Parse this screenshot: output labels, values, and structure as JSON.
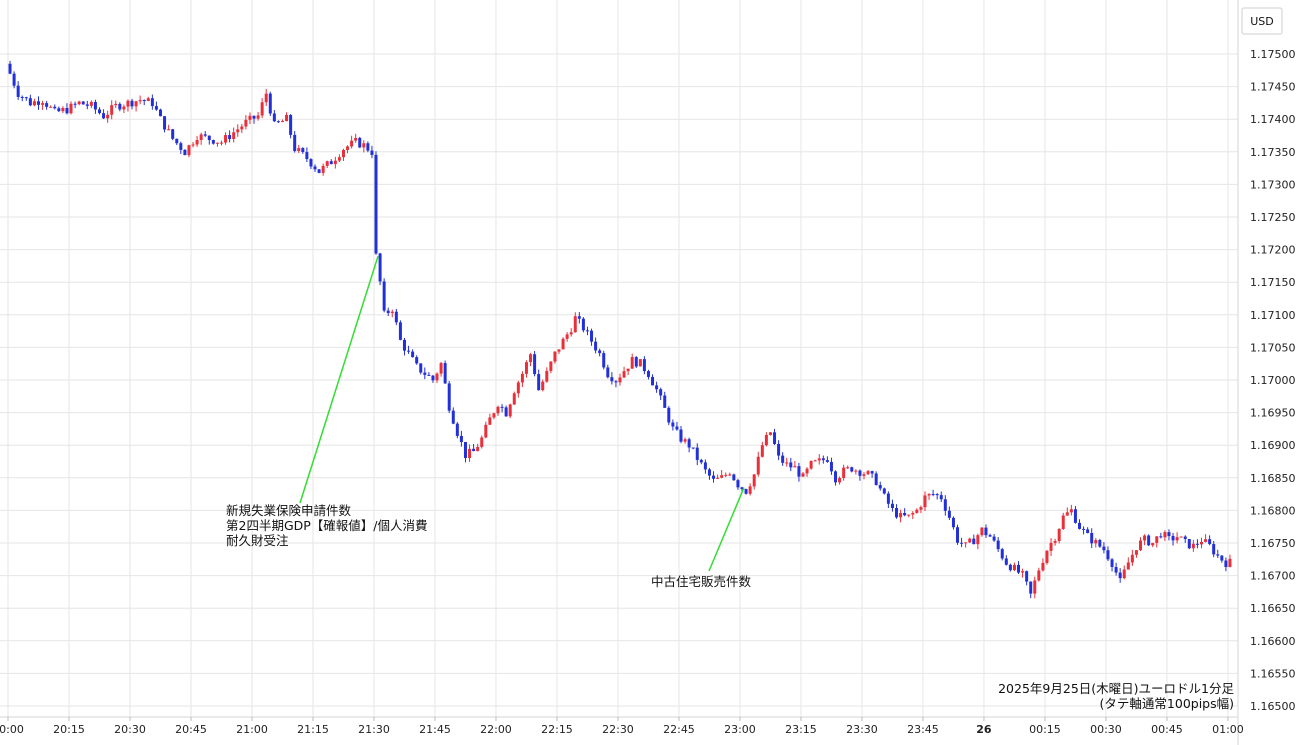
{
  "chart_data": {
    "type": "candlestick",
    "currency_unit": "USD",
    "y_ticks": [
      "1.16500",
      "1.16550",
      "1.16600",
      "1.16650",
      "1.16700",
      "1.16750",
      "1.16800",
      "1.16850",
      "1.16900",
      "1.16950",
      "1.17000",
      "1.17050",
      "1.17100",
      "1.17150",
      "1.17200",
      "1.17250",
      "1.17300",
      "1.17350",
      "1.17400",
      "1.17450",
      "1.17500"
    ],
    "ylim": [
      1.165,
      1.1755
    ],
    "x_ticks": [
      "20:00",
      "20:15",
      "20:30",
      "20:45",
      "21:00",
      "21:15",
      "21:30",
      "21:45",
      "22:00",
      "22:15",
      "22:30",
      "22:45",
      "23:00",
      "23:15",
      "23:30",
      "23:45",
      "26",
      "00:15",
      "00:30",
      "00:45",
      "01:00"
    ],
    "x_tick_minutes": [
      0,
      15,
      30,
      45,
      60,
      75,
      90,
      105,
      120,
      135,
      150,
      165,
      180,
      195,
      210,
      225,
      240,
      255,
      270,
      285,
      300
    ],
    "xlim_minutes": [
      0,
      301
    ],
    "up_color": "#e8303a",
    "down_color": "#2230d8",
    "grid": true,
    "price_path": [
      [
        0,
        1.17485
      ],
      [
        3,
        1.1744
      ],
      [
        6,
        1.17425
      ],
      [
        9,
        1.1743
      ],
      [
        12,
        1.1741
      ],
      [
        15,
        1.17415
      ],
      [
        18,
        1.17425
      ],
      [
        21,
        1.1742
      ],
      [
        24,
        1.17405
      ],
      [
        27,
        1.1742
      ],
      [
        30,
        1.17425
      ],
      [
        33,
        1.1743
      ],
      [
        36,
        1.17425
      ],
      [
        38,
        1.174
      ],
      [
        41,
        1.1737
      ],
      [
        44,
        1.1735
      ],
      [
        47,
        1.17375
      ],
      [
        50,
        1.1737
      ],
      [
        53,
        1.17365
      ],
      [
        56,
        1.1738
      ],
      [
        59,
        1.17395
      ],
      [
        62,
        1.17405
      ],
      [
        64,
        1.1744
      ],
      [
        66,
        1.1739
      ],
      [
        69,
        1.174
      ],
      [
        71,
        1.17355
      ],
      [
        74,
        1.1734
      ],
      [
        77,
        1.1732
      ],
      [
        80,
        1.17335
      ],
      [
        83,
        1.17355
      ],
      [
        86,
        1.17365
      ],
      [
        88,
        1.1736
      ],
      [
        90,
        1.1735
      ],
      [
        91,
        1.1719
      ],
      [
        92,
        1.1715
      ],
      [
        93,
        1.171
      ],
      [
        95,
        1.1711
      ],
      [
        97,
        1.1706
      ],
      [
        99,
        1.1704
      ],
      [
        101,
        1.1702
      ],
      [
        103,
        1.1701
      ],
      [
        105,
        1.17
      ],
      [
        107,
        1.17025
      ],
      [
        109,
        1.1696
      ],
      [
        111,
        1.1692
      ],
      [
        113,
        1.16885
      ],
      [
        115,
        1.1689
      ],
      [
        117,
        1.1691
      ],
      [
        119,
        1.1694
      ],
      [
        121,
        1.16965
      ],
      [
        123,
        1.1695
      ],
      [
        125,
        1.16985
      ],
      [
        127,
        1.1701
      ],
      [
        129,
        1.1704
      ],
      [
        131,
        1.16985
      ],
      [
        133,
        1.1701
      ],
      [
        135,
        1.1704
      ],
      [
        137,
        1.1706
      ],
      [
        139,
        1.1708
      ],
      [
        140,
        1.17095
      ],
      [
        142,
        1.1708
      ],
      [
        144,
        1.1706
      ],
      [
        146,
        1.1704
      ],
      [
        148,
        1.1701
      ],
      [
        150,
        1.17
      ],
      [
        152,
        1.17015
      ],
      [
        154,
        1.1703
      ],
      [
        156,
        1.17025
      ],
      [
        158,
        1.1701
      ],
      [
        160,
        1.16985
      ],
      [
        162,
        1.16955
      ],
      [
        164,
        1.16925
      ],
      [
        166,
        1.1691
      ],
      [
        168,
        1.169
      ],
      [
        170,
        1.1688
      ],
      [
        172,
        1.1686
      ],
      [
        174,
        1.16845
      ],
      [
        176,
        1.1685
      ],
      [
        178,
        1.1686
      ],
      [
        180,
        1.1684
      ],
      [
        182,
        1.1683
      ],
      [
        184,
        1.16855
      ],
      [
        186,
        1.169
      ],
      [
        188,
        1.1692
      ],
      [
        190,
        1.1688
      ],
      [
        192,
        1.1687
      ],
      [
        194,
        1.16865
      ],
      [
        196,
        1.1685
      ],
      [
        198,
        1.1687
      ],
      [
        200,
        1.16875
      ],
      [
        202,
        1.1688
      ],
      [
        204,
        1.1685
      ],
      [
        206,
        1.1686
      ],
      [
        208,
        1.16865
      ],
      [
        210,
        1.1686
      ],
      [
        212,
        1.16855
      ],
      [
        214,
        1.16845
      ],
      [
        216,
        1.1682
      ],
      [
        218,
        1.168
      ],
      [
        220,
        1.1679
      ],
      [
        222,
        1.1679
      ],
      [
        224,
        1.168
      ],
      [
        226,
        1.1682
      ],
      [
        228,
        1.16825
      ],
      [
        230,
        1.1682
      ],
      [
        232,
        1.1679
      ],
      [
        234,
        1.16755
      ],
      [
        236,
        1.16745
      ],
      [
        238,
        1.16755
      ],
      [
        240,
        1.1677
      ],
      [
        242,
        1.1676
      ],
      [
        244,
        1.1674
      ],
      [
        246,
        1.1672
      ],
      [
        248,
        1.1671
      ],
      [
        250,
        1.167
      ],
      [
        252,
        1.1667
      ],
      [
        254,
        1.1671
      ],
      [
        256,
        1.1674
      ],
      [
        258,
        1.1676
      ],
      [
        260,
        1.1679
      ],
      [
        262,
        1.168
      ],
      [
        264,
        1.16775
      ],
      [
        266,
        1.1676
      ],
      [
        268,
        1.1675
      ],
      [
        270,
        1.1674
      ],
      [
        272,
        1.1672
      ],
      [
        274,
        1.1669
      ],
      [
        276,
        1.1672
      ],
      [
        278,
        1.16745
      ],
      [
        280,
        1.16755
      ],
      [
        282,
        1.1675
      ],
      [
        284,
        1.16765
      ],
      [
        286,
        1.16755
      ],
      [
        288,
        1.1676
      ],
      [
        290,
        1.1675
      ],
      [
        292,
        1.16745
      ],
      [
        294,
        1.16755
      ],
      [
        296,
        1.16745
      ],
      [
        298,
        1.1673
      ],
      [
        300,
        1.1672
      ]
    ],
    "annotations": [
      {
        "lines": [
          "新規失業保険申請件数",
          "第2四半期GDP【確報値】/個人消費",
          "耐久財受注"
        ],
        "event_minute": 91,
        "event_price": 1.1719
      },
      {
        "lines": [
          "中古住宅販売件数"
        ],
        "event_minute": 181,
        "event_price": 1.16835
      }
    ],
    "caption_lines": [
      "2025年9月25日(木曜日)ユーロドル1分足",
      "(タテ軸通常100pips幅)"
    ]
  }
}
